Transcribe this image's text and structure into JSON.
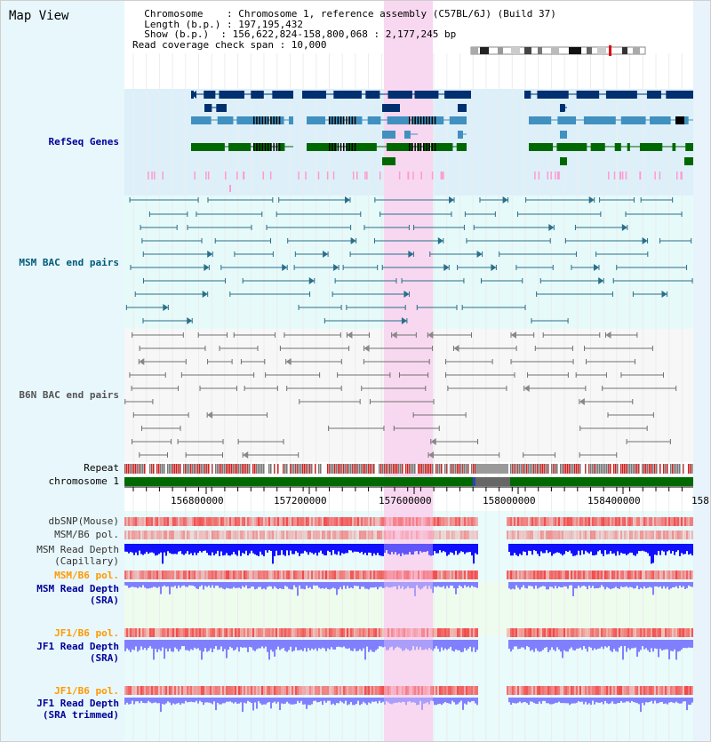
{
  "header": {
    "title": "Map View",
    "info_lines": [
      "  Chromosome    : Chromosome 1, reference assembly (C57BL/6J) (Build 37)",
      "  Length (b.p.) : 197,195,432",
      "  Show (b.p.)  : 156,622,824-158,800,068 : 2,177,245 bp",
      "Read coverage check span : 10,000"
    ]
  },
  "tracks": {
    "refseq": "RefSeq Genes",
    "msm_bac": "MSM BAC end pairs",
    "b6n_bac": "B6N BAC end pairs",
    "repeat": "Repeat",
    "chromosome": "chromosome 1",
    "dbsnp": "dbSNP(Mouse)",
    "msm_b6_pol": "MSM/B6 pol.",
    "msm_depth_cap_1": "MSM Read Depth",
    "msm_depth_cap_2": "(Capillary)",
    "msm_b6_pol_2": "MSM/B6 pol.",
    "msm_depth_sra_1": "MSM Read Depth",
    "msm_depth_sra_2": "(SRA)",
    "jf1_b6_pol": "JF1/B6 pol.",
    "jf1_depth_sra_1": "JF1 Read Depth",
    "jf1_depth_sra_2": "(SRA)",
    "jf1_b6_pol_2": "JF1/B6 pol.",
    "jf1_depth_trim_1": "JF1 Read Depth",
    "jf1_depth_trim_2": "(SRA trimmed)"
  },
  "axis": {
    "ticks": [
      "156800000",
      "157200000",
      "157600000",
      "158000000",
      "158400000",
      "158"
    ]
  },
  "colors": {
    "refseq_bg": "#ddf0fa",
    "msm_bac_bg": "#e6fafa",
    "b6n_bac_bg": "#f7f7f7",
    "highlight": "#f8d8f0",
    "gene_navy": "#003070",
    "gene_steel": "#4090c0",
    "gene_green": "#006800",
    "snp_pink": "#ff9ad0",
    "msm_bac_line": "#2a6e8a",
    "b6n_bac_line": "#707070",
    "chrom_green": "#006a00",
    "depth_blue": "#1010ff",
    "depth_light": "#8080ff",
    "pol_red": "#f24848",
    "label_blue": "#000099",
    "label_teal": "#005a7a",
    "label_orange": "#ff9900",
    "label_gray": "#555555"
  }
}
